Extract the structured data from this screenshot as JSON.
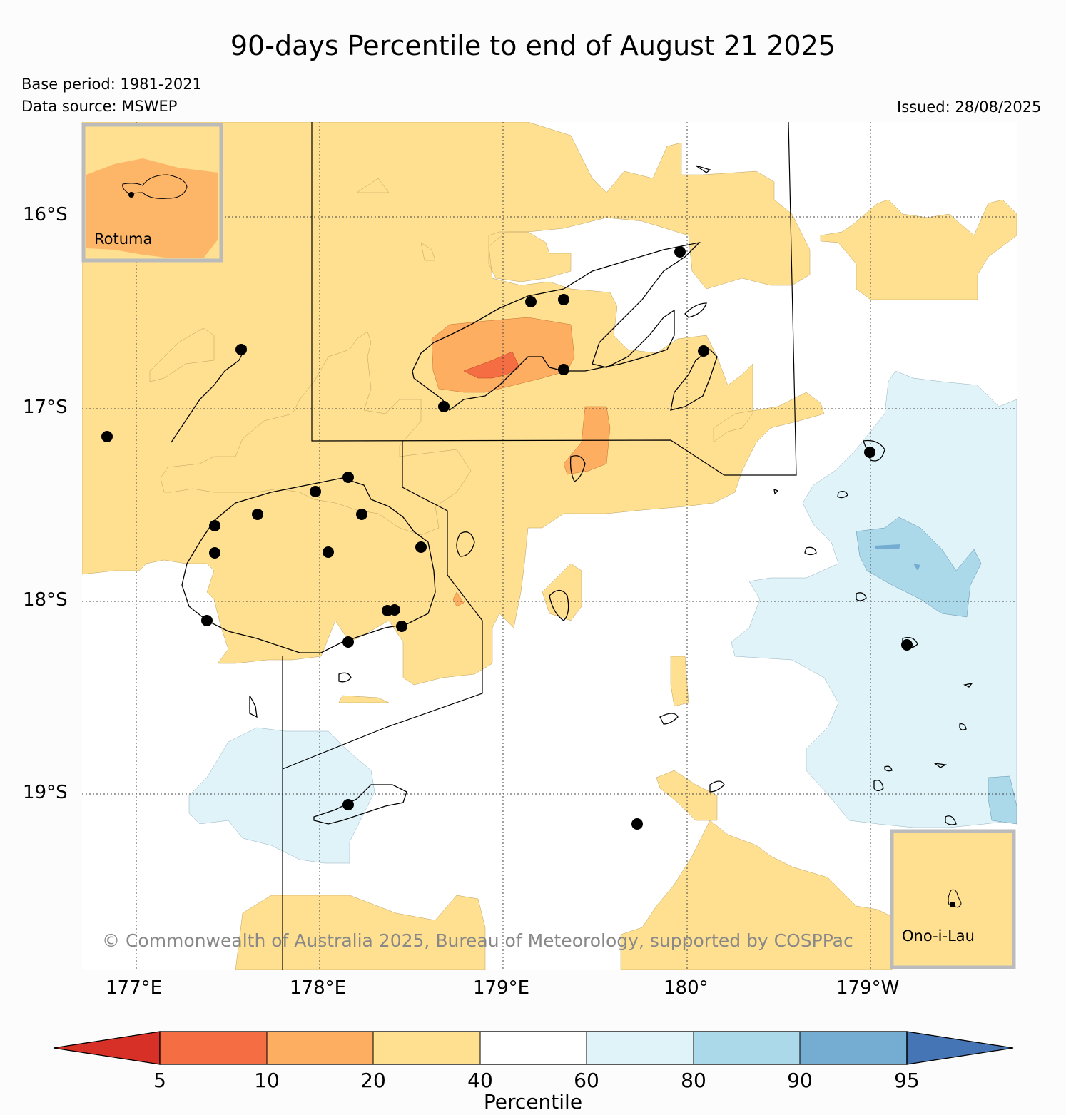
{
  "title": "90-days Percentile to end of August 21 2025",
  "base_period": "Base period: 1981-2021",
  "data_source": "Data source: MSWEP",
  "issued": "Issued: 28/08/2025",
  "copyright": "© Commonwealth of Australia 2025, Bureau of Meteorology, supported by COSPPac",
  "axes": {
    "lat_labels": [
      "16°S",
      "17°S",
      "18°S",
      "19°S"
    ],
    "lon_labels": [
      "177°E",
      "178°E",
      "179°E",
      "180°",
      "179°W"
    ]
  },
  "insets": {
    "rotuma": "Rotuma",
    "ono": "Ono-i-Lau"
  },
  "colorbar": {
    "title": "Percentile",
    "ticks": [
      "5",
      "10",
      "20",
      "40",
      "60",
      "80",
      "90",
      "95"
    ],
    "colors": [
      "#d73027",
      "#f46d43",
      "#fdae61",
      "#fee090",
      "#ffffff",
      "#e0f3f8",
      "#abd9e9",
      "#74add1",
      "#4575b4"
    ]
  },
  "map_colors": {
    "p20_40": "#fee090",
    "p10_20": "#fdae61",
    "p5_10": "#f46d43",
    "p60_80": "#e0f3f8",
    "p80_90": "#abd9e9",
    "p90_95": "#74add1"
  }
}
